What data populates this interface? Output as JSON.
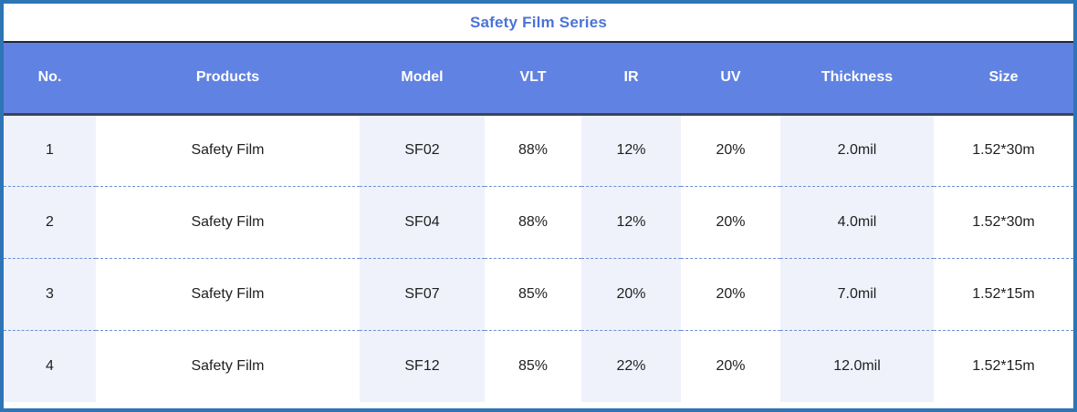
{
  "title": "Safety Film Series",
  "colors": {
    "outer_border": "#2E75B6",
    "header_bg": "#6082E2",
    "header_text": "#FFFFFF",
    "title_text": "#4B73D8",
    "striped_column_bg": "#EFF2FB",
    "row_divider": "#6E8FD4",
    "title_divider": "#20263A",
    "header_divider": "#3E4559",
    "cell_text": "#1F1F1F"
  },
  "table": {
    "columns": [
      "No.",
      "Products",
      "Model",
      "VLT",
      "IR",
      "UV",
      "Thickness",
      "Size"
    ],
    "rows": [
      [
        "1",
        "Safety Film",
        "SF02",
        "88%",
        "12%",
        "20%",
        "2.0mil",
        "1.52*30m"
      ],
      [
        "2",
        "Safety Film",
        "SF04",
        "88%",
        "12%",
        "20%",
        "4.0mil",
        "1.52*30m"
      ],
      [
        "3",
        "Safety Film",
        "SF07",
        "85%",
        "20%",
        "20%",
        "7.0mil",
        "1.52*15m"
      ],
      [
        "4",
        "Safety Film",
        "SF12",
        "85%",
        "22%",
        "20%",
        "12.0mil",
        "1.52*15m"
      ]
    ]
  }
}
